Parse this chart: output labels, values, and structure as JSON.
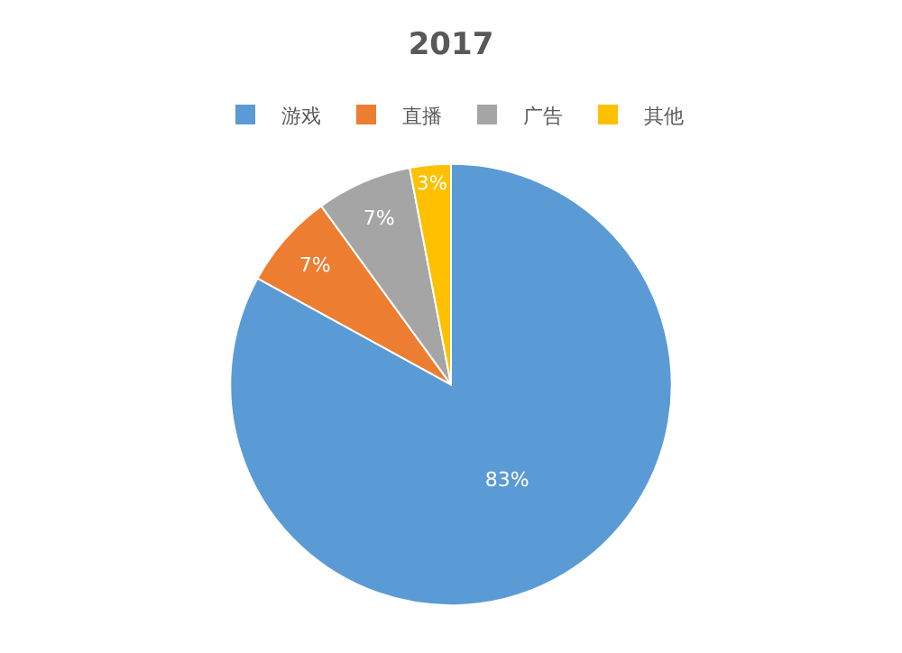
{
  "chart_data": {
    "type": "pie",
    "title": "2017",
    "categories": [
      "游戏",
      "直播",
      "广告",
      "其他"
    ],
    "values": [
      83,
      7,
      7,
      3
    ],
    "colors": [
      "#5b9bd5",
      "#ed7d31",
      "#a5a5a5",
      "#ffc000"
    ],
    "value_labels": [
      "83%",
      "7%",
      "7%",
      "3%"
    ],
    "legend": "top"
  }
}
